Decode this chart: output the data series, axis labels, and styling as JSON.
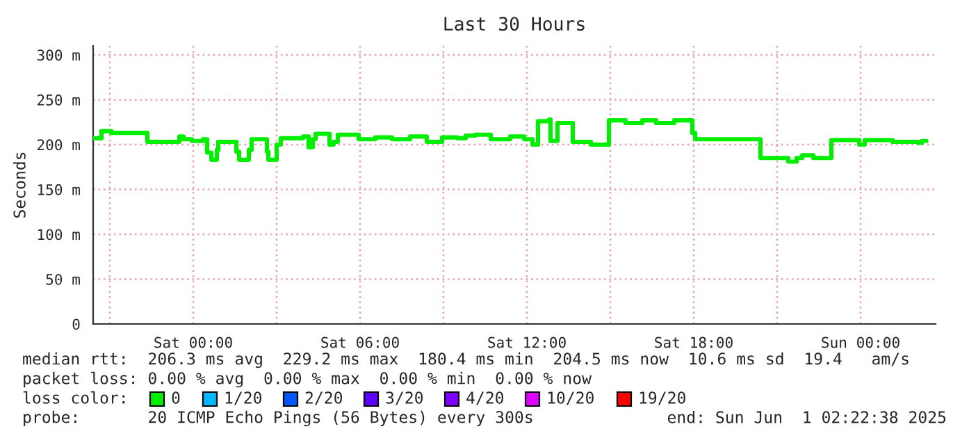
{
  "chart_data": {
    "type": "step",
    "title": "Last 30 Hours",
    "ylabel": "Seconds",
    "x": [
      "2025-05-30T20:24",
      "2025-05-30T20:42",
      "2025-05-30T21:03",
      "2025-05-30T22:21",
      "2025-05-30T23:30",
      "2025-05-30T23:39",
      "2025-05-30T23:57",
      "2025-05-31T00:21",
      "2025-05-31T00:30",
      "2025-05-31T00:39",
      "2025-05-31T00:51",
      "2025-05-31T00:54",
      "2025-05-31T01:33",
      "2025-05-31T01:39",
      "2025-05-31T02:00",
      "2025-05-31T02:06",
      "2025-05-31T02:39",
      "2025-05-31T02:42",
      "2025-05-31T03:00",
      "2025-05-31T03:09",
      "2025-05-31T03:57",
      "2025-05-31T04:09",
      "2025-05-31T04:18",
      "2025-05-31T04:24",
      "2025-05-31T04:54",
      "2025-05-31T05:03",
      "2025-05-31T05:12",
      "2025-05-31T05:57",
      "2025-05-31T06:33",
      "2025-05-31T07:09",
      "2025-05-31T07:48",
      "2025-05-31T08:24",
      "2025-05-31T08:57",
      "2025-05-31T09:30",
      "2025-05-31T09:48",
      "2025-05-31T10:09",
      "2025-05-31T10:42",
      "2025-05-31T11:24",
      "2025-05-31T11:54",
      "2025-05-31T12:12",
      "2025-05-31T12:24",
      "2025-05-31T12:48",
      "2025-05-31T12:51",
      "2025-05-31T13:06",
      "2025-05-31T13:39",
      "2025-05-31T14:18",
      "2025-05-31T14:57",
      "2025-05-31T15:33",
      "2025-05-31T16:09",
      "2025-05-31T16:39",
      "2025-05-31T17:18",
      "2025-05-31T17:57",
      "2025-05-31T18:03",
      "2025-05-31T20:24",
      "2025-05-31T21:24",
      "2025-05-31T21:42",
      "2025-05-31T21:54",
      "2025-05-31T22:18",
      "2025-05-31T22:57",
      "2025-05-31T23:57",
      "2025-06-01T00:09",
      "2025-06-01T01:09",
      "2025-06-01T02:03",
      "2025-06-01T02:12",
      "2025-06-01T02:22"
    ],
    "series": [
      {
        "name": "0",
        "color": "#00ee00",
        "values": [
          207,
          215,
          213,
          203,
          209,
          206,
          204,
          206,
          191,
          183,
          194,
          203,
          192,
          183,
          194,
          206,
          192,
          183,
          200,
          207,
          209,
          197,
          206,
          212,
          200,
          203,
          211,
          206,
          208,
          206,
          209,
          203,
          208,
          207,
          210,
          211,
          206,
          209,
          206,
          200,
          226,
          228,
          204,
          224,
          203,
          200,
          227,
          224,
          227,
          224,
          227,
          213,
          206,
          185,
          181,
          185,
          188,
          185,
          205,
          200,
          205,
          203,
          202,
          204,
          204
        ]
      }
    ],
    "xlim": [
      "2025-05-30T20:24",
      "2025-06-01T02:42"
    ],
    "xticks": [
      {
        "value": "2025-05-30T21:00",
        "label": null
      },
      {
        "value": "2025-05-31T00:00",
        "label": "Sat 00:00"
      },
      {
        "value": "2025-05-31T03:00",
        "label": null
      },
      {
        "value": "2025-05-31T06:00",
        "label": "Sat 06:00"
      },
      {
        "value": "2025-05-31T09:00",
        "label": null
      },
      {
        "value": "2025-05-31T12:00",
        "label": "Sat 12:00"
      },
      {
        "value": "2025-05-31T15:00",
        "label": null
      },
      {
        "value": "2025-05-31T18:00",
        "label": "Sat 18:00"
      },
      {
        "value": "2025-05-31T21:00",
        "label": null
      },
      {
        "value": "2025-06-01T00:00",
        "label": "Sun 00:00"
      }
    ],
    "ylim": [
      0,
      310
    ],
    "yticks": [
      0,
      {
        "value": 50,
        "label": "50 m"
      },
      {
        "value": 100,
        "label": "100 m"
      },
      {
        "value": 150,
        "label": "150 m"
      },
      {
        "value": 200,
        "label": "200 m"
      },
      {
        "value": 250,
        "label": "250 m"
      },
      {
        "value": 300,
        "label": "300 m"
      }
    ],
    "grid": true,
    "legend": "bottom",
    "annotations": [
      "median rtt:  206.3 ms avg  229.2 ms max  180.4 ms min  204.5 ms now  10.6 ms sd  19.4   am/s",
      "packet loss: 0.00 % avg  0.00 % max  0.00 % min  0.00 % now",
      "loss color:",
      "probe:       20 ICMP Echo Pings (56 Bytes) every 300s",
      "end: Sun Jun  1 02:22:38 2025",
      "1/20",
      "2/20",
      "3/20",
      "4/20",
      "10/20",
      "19/20"
    ]
  }
}
